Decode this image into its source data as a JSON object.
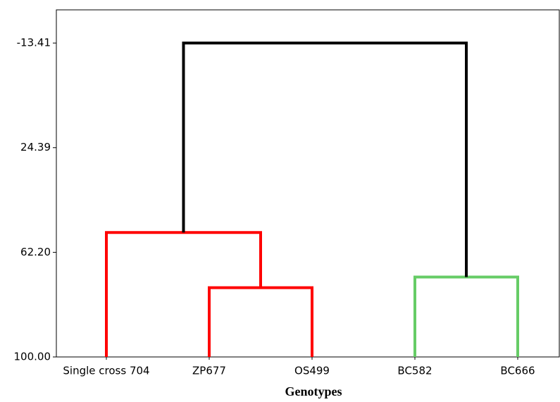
{
  "chart_data": {
    "type": "dendrogram",
    "x_label": "Genotypes",
    "categories": [
      "Single cross 704",
      "ZP677",
      "OS499",
      "BC582",
      "BC666"
    ],
    "merges": [
      {
        "left": 1,
        "right": 2,
        "height": 74.97,
        "color": "#ff0000"
      },
      {
        "left": 0,
        "right": 5,
        "height": 55.05,
        "color": "#ff0000"
      },
      {
        "left": 3,
        "right": 4,
        "height": 71.14,
        "color": "#66cc66"
      },
      {
        "left": 6,
        "right": 7,
        "height": -13.41,
        "color": "#000000"
      }
    ],
    "ylim": [
      100,
      -25.4
    ],
    "yticks": [
      -13.41,
      24.39,
      {
        "value": 62.2,
        "label": "62.20"
      },
      {
        "value": 100,
        "label": "100.00"
      }
    ]
  }
}
